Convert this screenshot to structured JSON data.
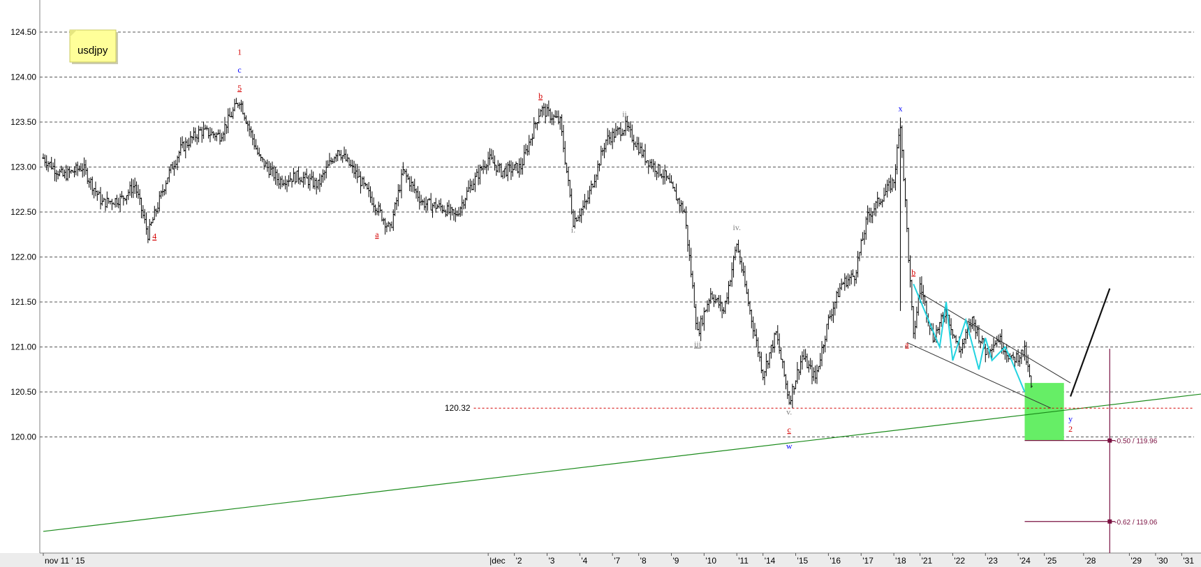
{
  "chart_data": {
    "type": "ohlc",
    "symbol_note": "usdjpy",
    "title": "",
    "xlabel": "",
    "ylabel": "",
    "ylim": [
      118.8,
      124.85
    ],
    "y_ticks": [
      "124.50",
      "124.00",
      "123.50",
      "123.00",
      "122.50",
      "122.00",
      "121.50",
      "121.00",
      "120.50",
      "120.00"
    ],
    "y_tick_values": [
      124.5,
      124.0,
      123.5,
      123.0,
      122.5,
      122.0,
      121.5,
      121.0,
      120.5,
      120.0
    ],
    "grid": "horizontal dashed",
    "x_range_bars": [
      0,
      182
    ],
    "x_ticks": [
      {
        "bar": 0,
        "label": "nov 11 ' 15"
      },
      {
        "bar": 68,
        "label": "|dec"
      },
      {
        "bar": 72,
        "label": "'2"
      },
      {
        "bar": 77,
        "label": "'3"
      },
      {
        "bar": 82,
        "label": "'4"
      },
      {
        "bar": 87,
        "label": "'7"
      },
      {
        "bar": 91,
        "label": "'8"
      },
      {
        "bar": 96,
        "label": "'9"
      },
      {
        "bar": 101,
        "label": "'10"
      },
      {
        "bar": 106,
        "label": "'11"
      },
      {
        "bar": 110,
        "label": "'14"
      },
      {
        "bar": 115,
        "label": "'15"
      },
      {
        "bar": 120,
        "label": "'16"
      },
      {
        "bar": 125,
        "label": "'17"
      },
      {
        "bar": 130,
        "label": "'18"
      },
      {
        "bar": 134,
        "label": "'21"
      },
      {
        "bar": 139,
        "label": "'22"
      },
      {
        "bar": 144,
        "label": "'23"
      },
      {
        "bar": 149,
        "label": "'24"
      },
      {
        "bar": 153,
        "label": "'25"
      },
      {
        "bar": 159,
        "label": "'28"
      },
      {
        "bar": 166,
        "label": "'29"
      },
      {
        "bar": 170,
        "label": "'30"
      },
      {
        "bar": 174,
        "label": "'31"
      }
    ],
    "price_path": [
      [
        0,
        123.1
      ],
      [
        3,
        122.9
      ],
      [
        6,
        123.0
      ],
      [
        9,
        122.6
      ],
      [
        12,
        122.65
      ],
      [
        14,
        122.8
      ],
      [
        16,
        122.25
      ],
      [
        19,
        122.9
      ],
      [
        21,
        123.2
      ],
      [
        24,
        123.4
      ],
      [
        27,
        123.35
      ],
      [
        30,
        123.75
      ],
      [
        33,
        123.1
      ],
      [
        36,
        122.85
      ],
      [
        39,
        122.9
      ],
      [
        42,
        122.8
      ],
      [
        45,
        123.2
      ],
      [
        48,
        122.9
      ],
      [
        51,
        122.55
      ],
      [
        53,
        122.3
      ],
      [
        55,
        122.95
      ],
      [
        58,
        122.6
      ],
      [
        61,
        122.55
      ],
      [
        63,
        122.45
      ],
      [
        65,
        122.75
      ],
      [
        68,
        123.1
      ],
      [
        70,
        122.95
      ],
      [
        73,
        123.0
      ],
      [
        76,
        123.65
      ],
      [
        79,
        123.5
      ],
      [
        81,
        122.4
      ],
      [
        83,
        122.6
      ],
      [
        86,
        123.3
      ],
      [
        89,
        123.45
      ],
      [
        92,
        123.1
      ],
      [
        95,
        122.9
      ],
      [
        98,
        122.5
      ],
      [
        100,
        121.15
      ],
      [
        102,
        121.6
      ],
      [
        104,
        121.4
      ],
      [
        106,
        122.15
      ],
      [
        108,
        121.4
      ],
      [
        110,
        120.7
      ],
      [
        112,
        121.15
      ],
      [
        114,
        120.4
      ],
      [
        116,
        120.9
      ],
      [
        118,
        120.65
      ],
      [
        120,
        121.3
      ],
      [
        122,
        121.7
      ],
      [
        124,
        121.8
      ],
      [
        126,
        122.45
      ],
      [
        128,
        122.65
      ],
      [
        130,
        122.85
      ],
      [
        131,
        123.5
      ],
      [
        132,
        122.3
      ],
      [
        133,
        121.1
      ],
      [
        134,
        121.7
      ],
      [
        136,
        121.1
      ],
      [
        138,
        121.4
      ],
      [
        140,
        120.95
      ],
      [
        142,
        121.3
      ],
      [
        144,
        120.95
      ],
      [
        146,
        121.1
      ],
      [
        148,
        120.85
      ],
      [
        150,
        120.95
      ],
      [
        151,
        120.55
      ]
    ],
    "wave_labels": [
      {
        "bar": 17,
        "price": 122.2,
        "text": "4",
        "color": "#d40000",
        "underline": true
      },
      {
        "bar": 30,
        "price": 124.25,
        "text": "1",
        "color": "#d40000"
      },
      {
        "bar": 30,
        "price": 124.05,
        "text": "c",
        "color": "#0000ff"
      },
      {
        "bar": 30,
        "price": 123.85,
        "text": "5",
        "color": "#d40000",
        "underline": true
      },
      {
        "bar": 51,
        "price": 122.22,
        "text": "a",
        "color": "#d40000",
        "underline": true
      },
      {
        "bar": 76,
        "price": 123.76,
        "text": "b",
        "color": "#d40000",
        "underline": true
      },
      {
        "bar": 81,
        "price": 122.27,
        "text": "i.",
        "color": "#808080"
      },
      {
        "bar": 89,
        "price": 123.56,
        "text": "ii.",
        "color": "#808080"
      },
      {
        "bar": 100,
        "price": 121.0,
        "text": "iii",
        "color": "#808080",
        "underline": true
      },
      {
        "bar": 106,
        "price": 122.3,
        "text": "iv.",
        "color": "#808080"
      },
      {
        "bar": 114,
        "price": 120.25,
        "text": "v.",
        "color": "#808080"
      },
      {
        "bar": 114,
        "price": 120.05,
        "text": "c",
        "color": "#d40000",
        "underline": true
      },
      {
        "bar": 114,
        "price": 119.87,
        "text": "w",
        "color": "#0000ff"
      },
      {
        "bar": 131,
        "price": 123.62,
        "text": "x",
        "color": "#0000ff"
      },
      {
        "bar": 133,
        "price": 121.8,
        "text": "b",
        "color": "#d40000",
        "underline": true
      },
      {
        "bar": 132,
        "price": 121.0,
        "text": "a",
        "color": "#d40000",
        "underline": true
      },
      {
        "bar": 157,
        "price": 120.17,
        "text": "y",
        "color": "#0000ff"
      },
      {
        "bar": 157,
        "price": 120.06,
        "text": "2",
        "color": "#d40000"
      }
    ],
    "support_level": {
      "price": 120.32,
      "label": "120.32",
      "from_bar": 61
    },
    "trendline_green": {
      "from": [
        0,
        118.95
      ],
      "to": [
        182,
        120.52
      ]
    },
    "channel_upper": {
      "from": [
        134,
        121.6
      ],
      "to": [
        157,
        120.6
      ]
    },
    "channel_lower": {
      "from": [
        132,
        121.05
      ],
      "to": [
        154,
        120.32
      ]
    },
    "cyan_zigzag": [
      [
        133,
        121.7
      ],
      [
        135,
        121.35
      ],
      [
        137,
        121.0
      ],
      [
        138,
        121.5
      ],
      [
        139,
        120.85
      ],
      [
        141,
        121.3
      ],
      [
        143,
        120.75
      ],
      [
        144,
        121.1
      ],
      [
        145,
        120.85
      ],
      [
        147,
        121.0
      ],
      [
        148,
        120.85
      ],
      [
        150,
        120.5
      ]
    ],
    "projection_line": {
      "from": [
        157,
        120.45
      ],
      "to": [
        163,
        121.65
      ]
    },
    "target_zone": {
      "bar_from": 150,
      "bar_to": 156,
      "price_top": 120.6,
      "price_bottom": 119.96,
      "color": "#66ee66"
    },
    "fib_vertical_bar": 163,
    "fib_levels": [
      {
        "price": 119.96,
        "label": "-0.50 / 119.96"
      },
      {
        "price": 119.06,
        "label": "-0.62 / 119.06"
      }
    ]
  }
}
